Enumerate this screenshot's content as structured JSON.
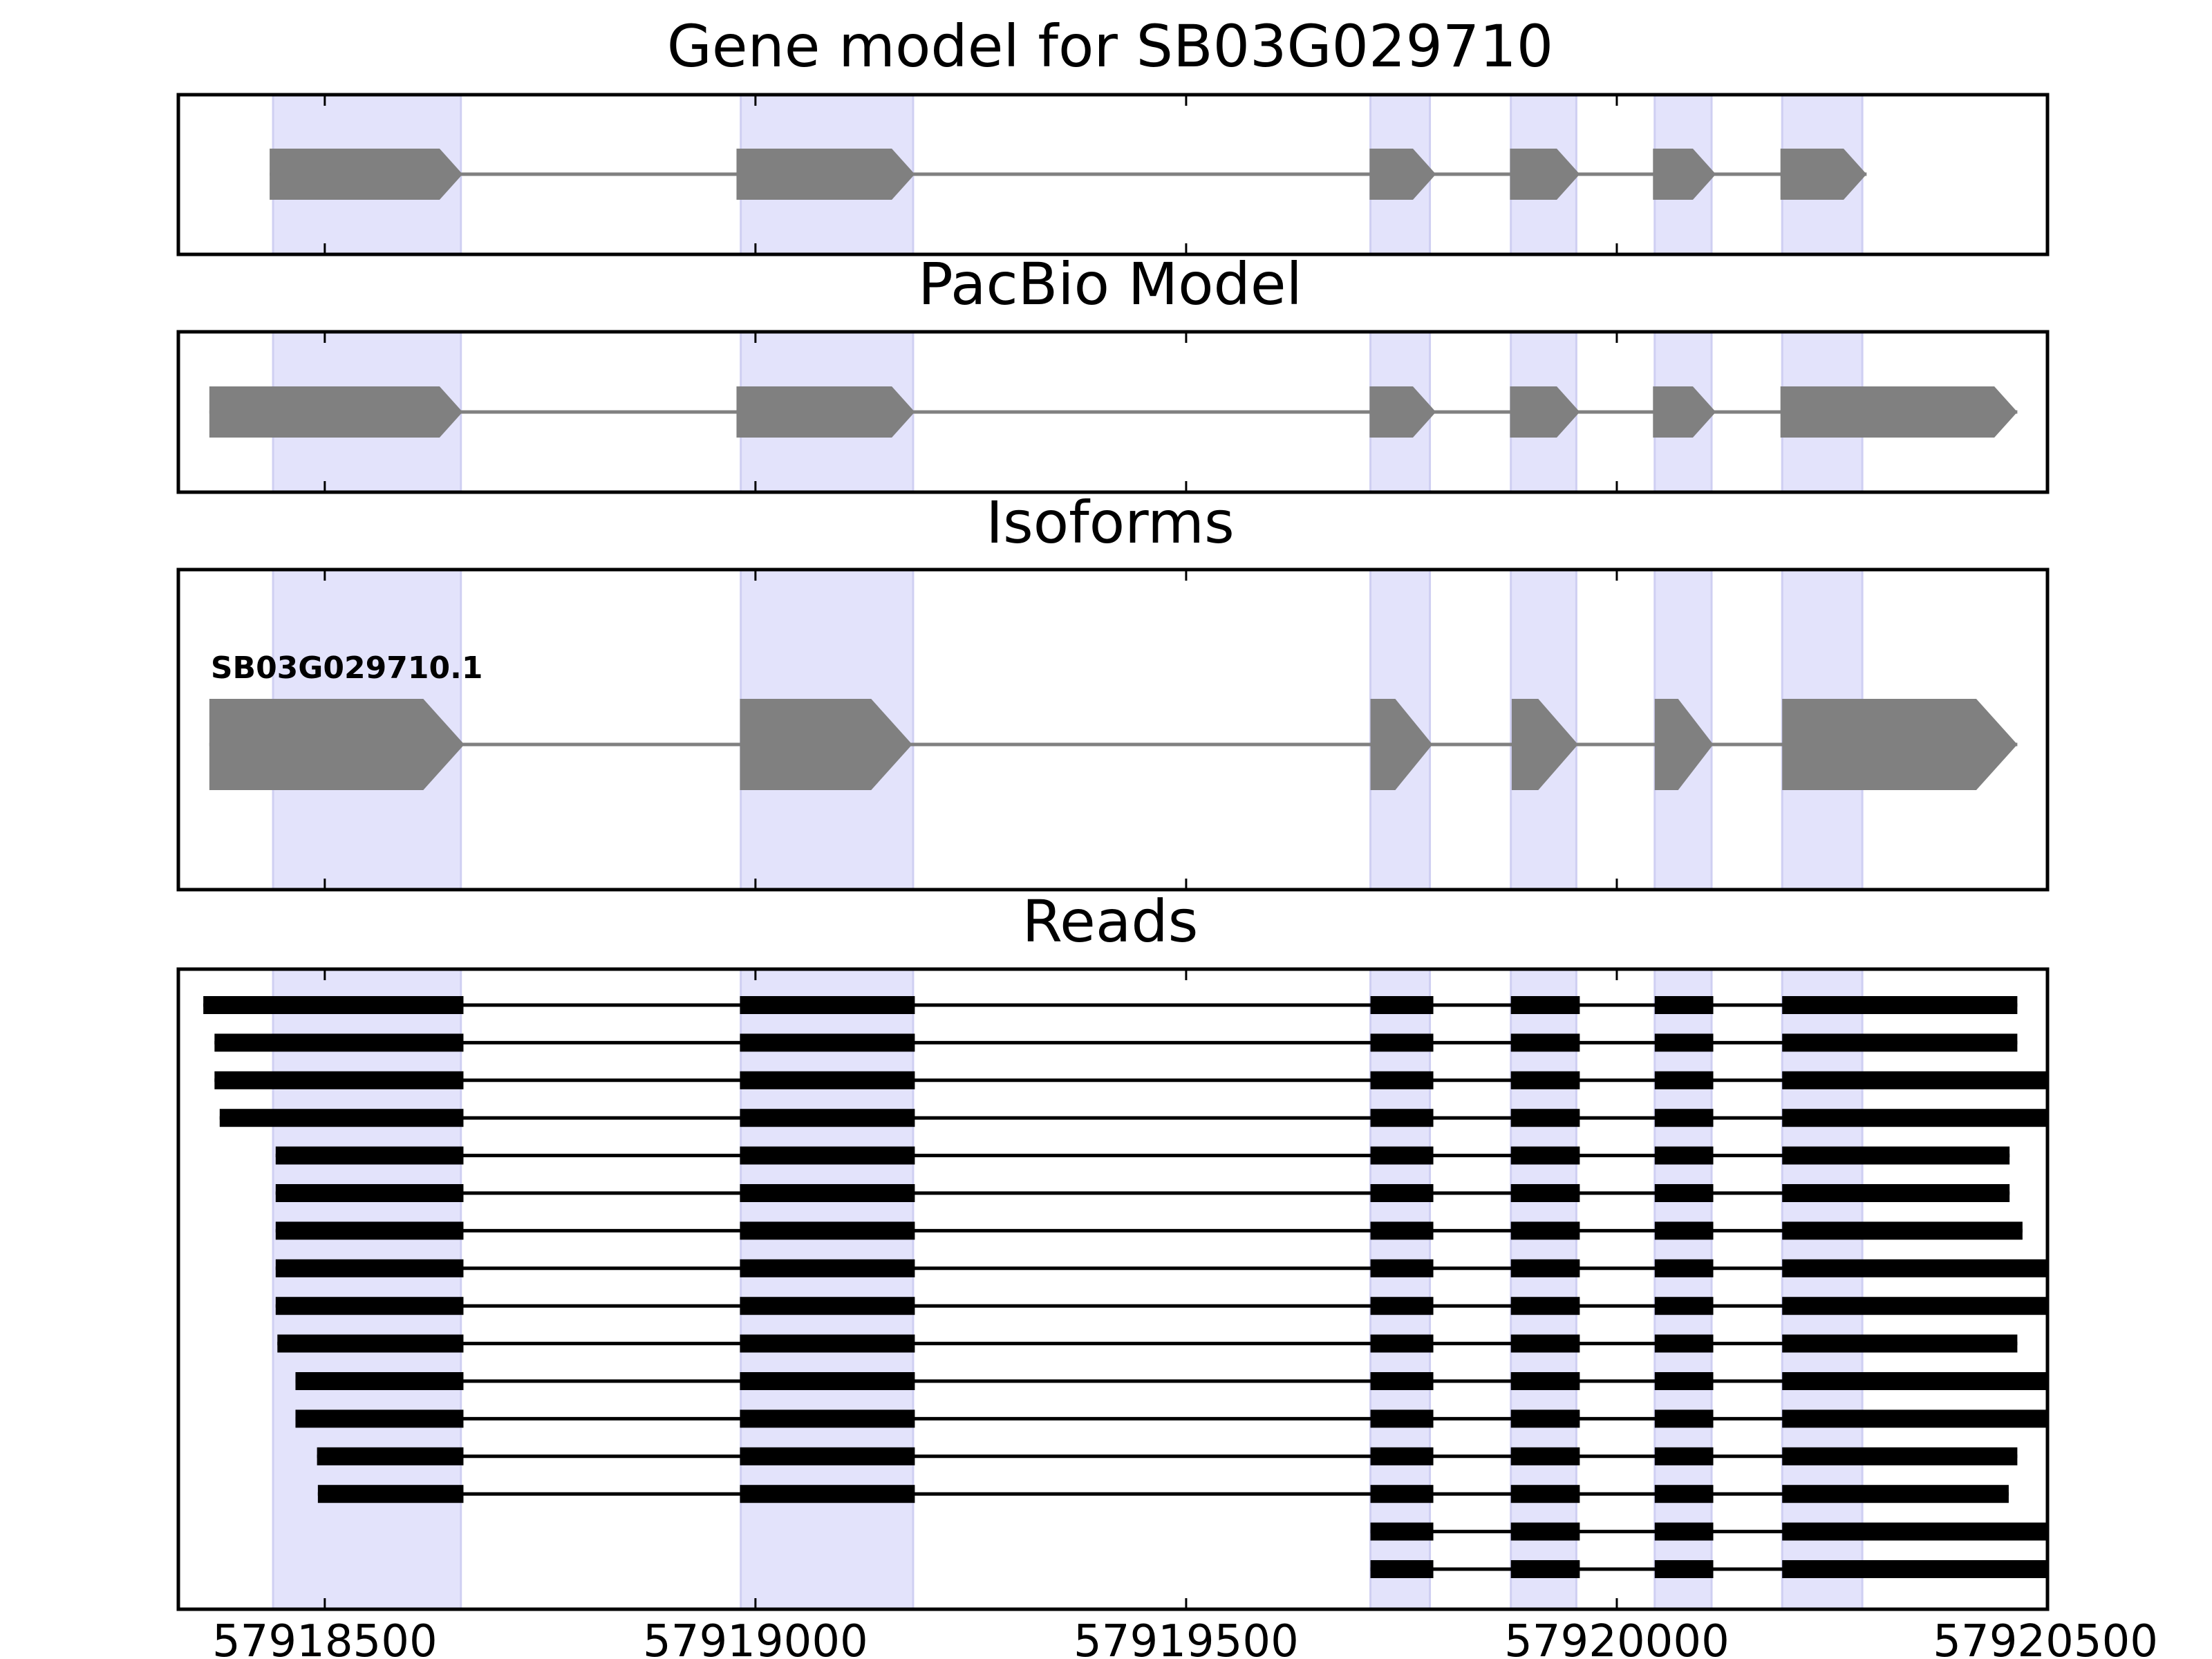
{
  "chart_data": {
    "type": "gene-structure",
    "xlim": [
      57918330,
      57920500
    ],
    "ticks": [
      57918500,
      57919000,
      57919500,
      57920000,
      57920500
    ],
    "tick_labels": [
      "57918500",
      "57919000",
      "57919500",
      "57920000",
      "57920500"
    ],
    "highlight_color": "#e3e3fb",
    "feature_color": "#808080",
    "read_color": "#000000",
    "highlights": [
      [
        57918440,
        57918658
      ],
      [
        57918983,
        57919183
      ],
      [
        57919714,
        57919783
      ],
      [
        57919877,
        57919953
      ],
      [
        57920044,
        57920110
      ],
      [
        57920192,
        57920285
      ]
    ],
    "panels": [
      {
        "id": "gene-model",
        "title": "Gene model for SB03G029710",
        "tracks": [
          {
            "label": "",
            "exons": [
              [
                57918436,
                57918660
              ],
              [
                57918978,
                57919185
              ],
              [
                57919713,
                57919790
              ],
              [
                57919876,
                57919957
              ],
              [
                57920042,
                57920115
              ],
              [
                57920190,
                57920290
              ]
            ]
          }
        ]
      },
      {
        "id": "pacbio-model",
        "title": "PacBio Model",
        "tracks": [
          {
            "label": "",
            "exons": [
              [
                57918366,
                57918660
              ],
              [
                57918978,
                57919185
              ],
              [
                57919713,
                57919790
              ],
              [
                57919876,
                57919957
              ],
              [
                57920042,
                57920115
              ],
              [
                57920190,
                57920465
              ]
            ]
          }
        ]
      },
      {
        "id": "isoforms",
        "title": "Isoforms",
        "tracks": [
          {
            "label": "SB03G029710.1",
            "exons": [
              [
                57918366,
                57918662
              ],
              [
                57918982,
                57919182
              ],
              [
                57919714,
                57919786
              ],
              [
                57919878,
                57919955
              ],
              [
                57920044,
                57920112
              ],
              [
                57920192,
                57920465
              ]
            ]
          }
        ]
      }
    ],
    "reads": {
      "title": "Reads",
      "rows": [
        [
          [
            57918359,
            57918661
          ],
          [
            57918982,
            57919185
          ],
          [
            57919714,
            57919787
          ],
          [
            57919877,
            57919957
          ],
          [
            57920044,
            57920112
          ],
          [
            57920192,
            57920465
          ]
        ],
        [
          [
            57918372,
            57918661
          ],
          [
            57918982,
            57919185
          ],
          [
            57919714,
            57919787
          ],
          [
            57919877,
            57919957
          ],
          [
            57920044,
            57920112
          ],
          [
            57920192,
            57920465
          ]
        ],
        [
          [
            57918372,
            57918661
          ],
          [
            57918982,
            57919185
          ],
          [
            57919714,
            57919787
          ],
          [
            57919877,
            57919957
          ],
          [
            57920044,
            57920112
          ],
          [
            57920192,
            57920500
          ]
        ],
        [
          [
            57918378,
            57918661
          ],
          [
            57918982,
            57919185
          ],
          [
            57919714,
            57919787
          ],
          [
            57919877,
            57919957
          ],
          [
            57920044,
            57920112
          ],
          [
            57920192,
            57920500
          ]
        ],
        [
          [
            57918443,
            57918661
          ],
          [
            57918982,
            57919185
          ],
          [
            57919714,
            57919787
          ],
          [
            57919877,
            57919957
          ],
          [
            57920044,
            57920112
          ],
          [
            57920192,
            57920456
          ]
        ],
        [
          [
            57918443,
            57918661
          ],
          [
            57918982,
            57919185
          ],
          [
            57919714,
            57919787
          ],
          [
            57919877,
            57919957
          ],
          [
            57920044,
            57920112
          ],
          [
            57920192,
            57920456
          ]
        ],
        [
          [
            57918443,
            57918661
          ],
          [
            57918982,
            57919185
          ],
          [
            57919714,
            57919787
          ],
          [
            57919877,
            57919957
          ],
          [
            57920044,
            57920112
          ],
          [
            57920192,
            57920471
          ]
        ],
        [
          [
            57918443,
            57918661
          ],
          [
            57918982,
            57919185
          ],
          [
            57919714,
            57919787
          ],
          [
            57919877,
            57919957
          ],
          [
            57920044,
            57920112
          ],
          [
            57920192,
            57920500
          ]
        ],
        [
          [
            57918443,
            57918661
          ],
          [
            57918982,
            57919185
          ],
          [
            57919714,
            57919787
          ],
          [
            57919877,
            57919957
          ],
          [
            57920044,
            57920112
          ],
          [
            57920192,
            57920500
          ]
        ],
        [
          [
            57918445,
            57918661
          ],
          [
            57918982,
            57919185
          ],
          [
            57919714,
            57919787
          ],
          [
            57919877,
            57919957
          ],
          [
            57920044,
            57920112
          ],
          [
            57920192,
            57920465
          ]
        ],
        [
          [
            57918466,
            57918661
          ],
          [
            57918982,
            57919185
          ],
          [
            57919714,
            57919787
          ],
          [
            57919877,
            57919957
          ],
          [
            57920044,
            57920112
          ],
          [
            57920192,
            57920500
          ]
        ],
        [
          [
            57918466,
            57918661
          ],
          [
            57918982,
            57919185
          ],
          [
            57919714,
            57919787
          ],
          [
            57919877,
            57919957
          ],
          [
            57920044,
            57920112
          ],
          [
            57920192,
            57920500
          ]
        ],
        [
          [
            57918491,
            57918661
          ],
          [
            57918982,
            57919185
          ],
          [
            57919714,
            57919787
          ],
          [
            57919877,
            57919957
          ],
          [
            57920044,
            57920112
          ],
          [
            57920192,
            57920465
          ]
        ],
        [
          [
            57918492,
            57918661
          ],
          [
            57918982,
            57919185
          ],
          [
            57919714,
            57919787
          ],
          [
            57919877,
            57919957
          ],
          [
            57920044,
            57920112
          ],
          [
            57920192,
            57920455
          ]
        ],
        [
          [
            57919714,
            57919787
          ],
          [
            57919877,
            57919957
          ],
          [
            57920044,
            57920112
          ],
          [
            57920192,
            57920500
          ]
        ],
        [
          [
            57919714,
            57919787
          ],
          [
            57919877,
            57919957
          ],
          [
            57920044,
            57920112
          ],
          [
            57920192,
            57920500
          ]
        ]
      ]
    }
  }
}
